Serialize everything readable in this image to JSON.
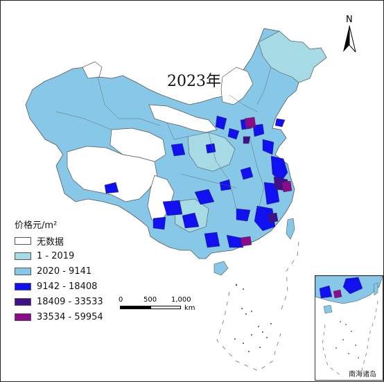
{
  "map": {
    "title": "2023年",
    "north_label": "N",
    "scale": {
      "ticks": [
        "0",
        "500",
        "1,000"
      ],
      "unit": "km"
    },
    "inset_label": "南海诸岛"
  },
  "legend": {
    "title": "价格元/m²",
    "items": [
      {
        "label": "无数据",
        "color": "#ffffff"
      },
      {
        "label": "1 - 2019",
        "color": "#a6dbe6"
      },
      {
        "label": "2020 - 9141",
        "color": "#87c8e8"
      },
      {
        "label": "9142 - 18408",
        "color": "#1010f0"
      },
      {
        "label": "18409 - 33533",
        "color": "#40108a"
      },
      {
        "label": "33534 - 59954",
        "color": "#8a0a8a"
      }
    ]
  }
}
